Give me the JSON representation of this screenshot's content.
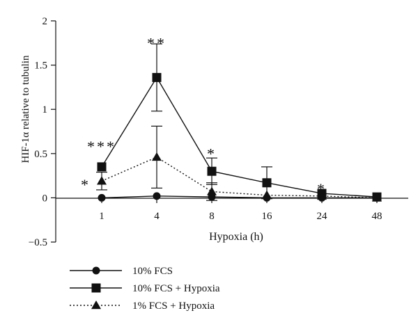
{
  "chart_data": {
    "type": "line",
    "title": "",
    "xlabel": "Hypoxia (h)",
    "ylabel": "HIF-1α relative to tubulin",
    "categories": [
      "1",
      "4",
      "8",
      "16",
      "24",
      "48"
    ],
    "yticks": [
      "−0.5",
      "0",
      "0.5",
      "1",
      "1.5",
      "2"
    ],
    "ylim": [
      -0.5,
      2
    ],
    "grid": false,
    "legend_position": "bottom-left",
    "series": [
      {
        "name": "10% FCS",
        "marker": "circle",
        "line": "solid",
        "values": [
          0,
          0.02,
          0.01,
          0,
          0,
          0
        ],
        "errors": [
          null,
          null,
          null,
          null,
          null,
          null
        ]
      },
      {
        "name": "10% FCS + Hypoxia",
        "marker": "square",
        "line": "solid",
        "values": [
          0.35,
          1.36,
          0.3,
          0.17,
          0.05,
          0.01
        ],
        "errors": [
          null,
          0.38,
          0.15,
          0.18,
          null,
          null
        ]
      },
      {
        "name": "1% FCS + Hypoxia",
        "marker": "triangle",
        "line": "dotted",
        "values": [
          0.19,
          0.46,
          0.07,
          0.03,
          0.02,
          0
        ],
        "errors": [
          0.1,
          0.35,
          0.1,
          null,
          null,
          null
        ]
      }
    ],
    "annotations": [
      {
        "text": "***",
        "x": "1",
        "y": 0.6
      },
      {
        "text": "*",
        "x": "1",
        "y": 0.17,
        "side": "left"
      },
      {
        "text": "**",
        "x": "4",
        "y": 1.77
      },
      {
        "text": "*",
        "x": "8",
        "y": 0.52
      },
      {
        "text": "*",
        "x": "24",
        "y": 0.12
      }
    ]
  }
}
